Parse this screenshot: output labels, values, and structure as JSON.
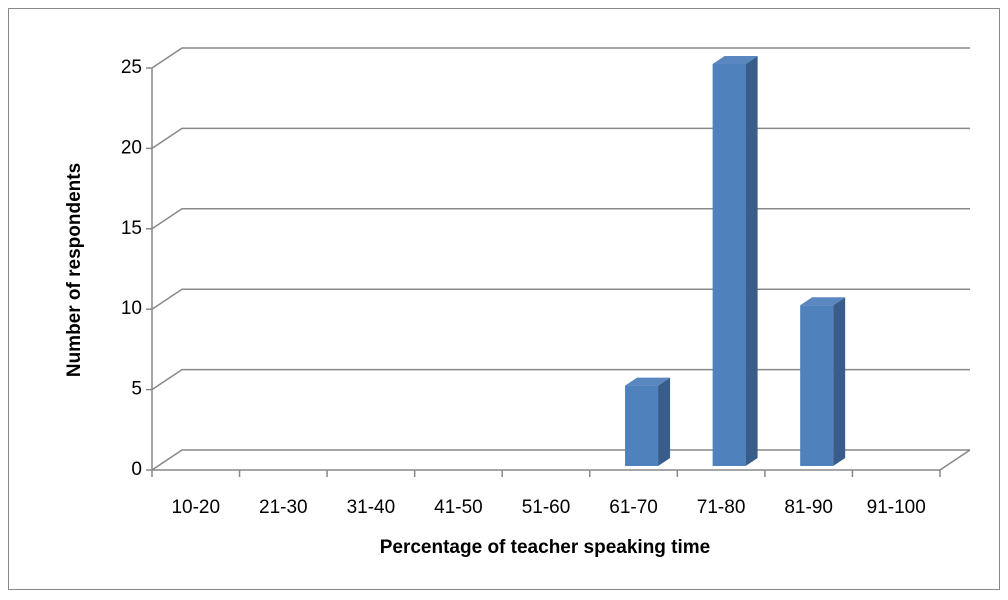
{
  "chart_data": {
    "type": "bar3d",
    "x_label": "Percentage of teacher speaking time",
    "y_label": "Number of respondents",
    "categories": [
      "10-20",
      "21-30",
      "31-40",
      "41-50",
      "51-60",
      "61-70",
      "71-80",
      "81-90",
      "91-100"
    ],
    "values": [
      0,
      0,
      0,
      0,
      0,
      5,
      25,
      10,
      0
    ],
    "color": "#4f81bd",
    "ylim": [
      0,
      25
    ],
    "yticks": [
      0,
      5,
      10,
      15,
      20,
      25
    ],
    "grid": true
  }
}
